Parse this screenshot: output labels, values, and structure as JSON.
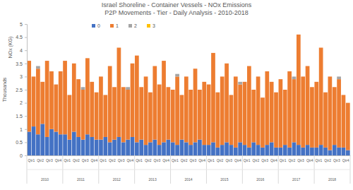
{
  "chart_data": {
    "type": "bar",
    "title": "Israel Shoreline - Container Vessels - NOx Emissions",
    "subtitle": "P2P Movements - Tier - Daily Analysis - 2010-2018",
    "ylabel": "NOx (KG)",
    "y_units": "Thousands",
    "stacked": true,
    "grid": false,
    "legend": "top",
    "categories": [
      "Qtr1",
      null,
      "Qtr2",
      null,
      "Qtr3",
      null,
      "Qtr4",
      null,
      "Qtr1",
      null,
      "Qtr2",
      null,
      "Qtr3",
      null,
      "Qtr4",
      null,
      "Qtr1",
      null,
      "Qtr2",
      null,
      "Qtr3",
      null,
      "Qtr4",
      null,
      "Qtr1",
      null,
      "Qtr2",
      null,
      "Qtr3",
      null,
      "Qtr4",
      null,
      "Qtr1",
      null,
      "Qtr2",
      null,
      "Qtr3",
      null,
      "Qtr4",
      null,
      "Qtr1",
      null,
      "Qtr2",
      null,
      "Qtr3",
      null,
      "Qtr4",
      null,
      "Qtr1",
      null,
      "Qtr2",
      null,
      "Qtr3",
      null,
      "Qtr4",
      null,
      "Qtr1",
      null,
      "Qtr2",
      null,
      "Qtr3",
      null,
      "Qtr4",
      null,
      "Qtr1",
      null,
      "Qtr2",
      null,
      "Qtr3",
      null,
      "Qtr4",
      null
    ],
    "years": [
      "2010",
      "2011",
      "2012",
      "2013",
      "2014",
      "2015",
      "2016",
      "2017",
      "2018"
    ],
    "ylim": [
      0,
      5
    ],
    "yticks": [
      0,
      0.5,
      1,
      1.5,
      2,
      2.5,
      3,
      3.5,
      4,
      4.5,
      5
    ],
    "series": [
      {
        "name": "0",
        "color": "#4472c4",
        "values": [
          0.9,
          1.1,
          0.8,
          1.2,
          0.7,
          1.0,
          0.9,
          0.8,
          0.8,
          0.6,
          0.9,
          0.7,
          0.6,
          0.8,
          0.7,
          0.6,
          0.6,
          0.7,
          0.5,
          0.6,
          0.7,
          0.5,
          0.6,
          0.7,
          0.5,
          0.6,
          0.4,
          0.5,
          0.6,
          0.4,
          0.5,
          0.6,
          0.5,
          0.4,
          0.6,
          0.5,
          0.4,
          0.5,
          0.6,
          0.4,
          0.4,
          0.5,
          0.3,
          0.4,
          0.5,
          0.4,
          0.3,
          0.5,
          0.4,
          0.3,
          0.5,
          0.4,
          0.3,
          0.4,
          0.5,
          0.3,
          0.3,
          0.4,
          0.3,
          0.5,
          0.4,
          0.3,
          0.4,
          0.3,
          0.3,
          0.4,
          0.3,
          0.2,
          0.4,
          0.3,
          0.3,
          0.2
        ]
      },
      {
        "name": "1",
        "color": "#ed7d31",
        "values": [
          2.7,
          1.9,
          2.5,
          1.6,
          2.9,
          2.2,
          1.8,
          2.4,
          2.8,
          1.7,
          2.6,
          2.2,
          1.9,
          2.9,
          2.1,
          1.8,
          2.4,
          1.6,
          2.9,
          2.0,
          3.4,
          2.1,
          1.9,
          2.8,
          3.3,
          2.0,
          2.6,
          1.9,
          2.8,
          2.3,
          3.1,
          2.0,
          2.0,
          2.6,
          1.7,
          2.5,
          2.1,
          2.8,
          1.9,
          2.4,
          2.3,
          3.4,
          2.1,
          2.6,
          3.0,
          1.9,
          2.7,
          2.2,
          2.4,
          3.1,
          2.0,
          2.6,
          1.9,
          2.8,
          2.3,
          2.1,
          2.6,
          2.1,
          2.9,
          2.4,
          4.2,
          2.7,
          3.0,
          2.3,
          2.5,
          3.7,
          2.1,
          2.8,
          2.2,
          2.6,
          2.0,
          1.8
        ]
      },
      {
        "name": "2",
        "color": "#a5a5a5",
        "values": [
          0,
          0,
          0.1,
          0,
          0,
          0,
          0,
          0,
          0,
          0,
          0,
          0,
          0.1,
          0,
          0,
          0,
          0,
          0,
          0,
          0,
          0,
          0,
          0.1,
          0,
          0,
          0,
          0,
          0,
          0,
          0,
          0,
          0,
          0,
          0.1,
          0,
          0,
          0,
          0,
          0,
          0,
          0,
          0,
          0,
          0,
          0,
          0,
          0,
          0.1,
          0,
          0,
          0,
          0,
          0,
          0,
          0,
          0,
          0,
          0,
          0,
          0.1,
          0,
          0,
          0,
          0,
          0,
          0,
          0,
          0,
          0,
          0.1,
          0,
          0
        ]
      },
      {
        "name": "3",
        "color": "#ffc000",
        "values": [
          0,
          0,
          0,
          0,
          0,
          0,
          0,
          0,
          0,
          0,
          0,
          0,
          0,
          0,
          0,
          0,
          0,
          0,
          0,
          0,
          0,
          0,
          0,
          0,
          0,
          0,
          0,
          0,
          0,
          0,
          0,
          0,
          0,
          0,
          0,
          0,
          0,
          0,
          0,
          0,
          0,
          0,
          0,
          0,
          0,
          0,
          0,
          0,
          0,
          0,
          0,
          0,
          0,
          0,
          0,
          0,
          0,
          0,
          0,
          0,
          0,
          0,
          0,
          0,
          0,
          0,
          0,
          0,
          0,
          0,
          0,
          0
        ]
      }
    ]
  }
}
